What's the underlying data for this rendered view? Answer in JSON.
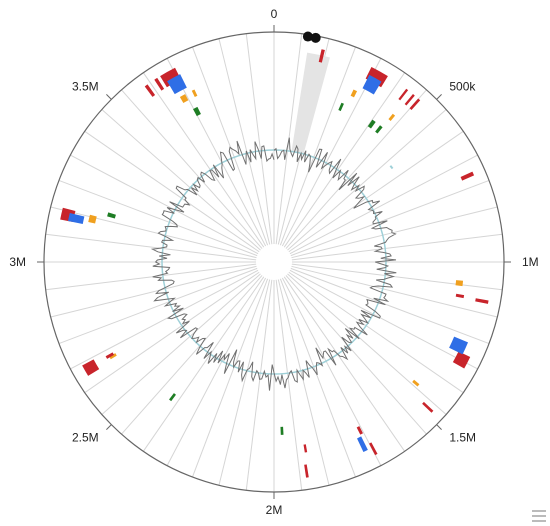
{
  "chart_data": {
    "type": "circular-genome",
    "genome_size": 4000000,
    "tick_labels": [
      {
        "pos": 0,
        "label": "0"
      },
      {
        "pos": 500000,
        "label": "500k"
      },
      {
        "pos": 1000000,
        "label": "1M"
      },
      {
        "pos": 1500000,
        "label": "1.5M"
      },
      {
        "pos": 2000000,
        "label": "2M"
      },
      {
        "pos": 2500000,
        "label": "2.5M"
      },
      {
        "pos": 3000000,
        "label": "3M"
      },
      {
        "pos": 3500000,
        "label": "3.5M"
      }
    ],
    "tracks": {
      "red_outer": [
        {
          "start": 140000,
          "end": 150000
        },
        {
          "start": 295000,
          "end": 350000
        },
        {
          "start": 415000,
          "end": 422000
        },
        {
          "start": 440000,
          "end": 447000
        },
        {
          "start": 460000,
          "end": 468000
        },
        {
          "start": 728000,
          "end": 740000
        },
        {
          "start": 1113000,
          "end": 1123000
        },
        {
          "start": 1287000,
          "end": 1325000
        },
        {
          "start": 1478000,
          "end": 1486000
        },
        {
          "start": 1685000,
          "end": 1693000
        },
        {
          "start": 1898000,
          "end": 1906000
        },
        {
          "start": 2650000,
          "end": 2685000
        },
        {
          "start": 3125000,
          "end": 3160000
        },
        {
          "start": 3596000,
          "end": 3606000
        },
        {
          "start": 3630000,
          "end": 3640000
        },
        {
          "start": 3650000,
          "end": 3700000
        }
      ],
      "blue": [
        {
          "start": 300000,
          "end": 342000
        },
        {
          "start": 1250000,
          "end": 1290000
        },
        {
          "start": 1705000,
          "end": 1720000
        },
        {
          "start": 3125000,
          "end": 3150000
        },
        {
          "start": 3660000,
          "end": 3705000
        }
      ],
      "orange": [
        {
          "start": 275000,
          "end": 288000
        },
        {
          "start": 430000,
          "end": 440000
        },
        {
          "start": 1063000,
          "end": 1081000
        },
        {
          "start": 1445000,
          "end": 1455000
        },
        {
          "start": 2658000,
          "end": 2668000
        },
        {
          "start": 3135000,
          "end": 3160000
        },
        {
          "start": 3670000,
          "end": 3690000
        },
        {
          "start": 3715000,
          "end": 3725000
        }
      ],
      "green": [
        {
          "start": 255000,
          "end": 265000
        },
        {
          "start": 385000,
          "end": 400000
        },
        {
          "start": 420000,
          "end": 432000
        },
        {
          "start": 1965000,
          "end": 1975000
        },
        {
          "start": 2405000,
          "end": 2415000
        },
        {
          "start": 3170000,
          "end": 3185000
        },
        {
          "start": 3690000,
          "end": 3708000
        }
      ],
      "inner_red": [
        {
          "start": 1110000,
          "end": 1120000
        },
        {
          "start": 1695000,
          "end": 1705000
        },
        {
          "start": 1890000,
          "end": 1898000
        },
        {
          "start": 2665000,
          "end": 2675000
        }
      ],
      "teal_mark": [
        {
          "start": 560000,
          "end": 575000
        }
      ],
      "black_dots": [
        {
          "pos": 95000
        },
        {
          "pos": 117000
        }
      ],
      "grey_sector": {
        "start": 100000,
        "end": 170000
      }
    },
    "spokes_count": 52,
    "colors": {
      "red": "#c8242b",
      "blue": "#2f6ee6",
      "orange": "#f0a01f",
      "green": "#1e7d24",
      "line": "#707070",
      "baseline": "#9fd0d8",
      "grey_sector": "#e4e4e4",
      "axis": "#666666",
      "spoke": "#d5d5d5"
    }
  }
}
